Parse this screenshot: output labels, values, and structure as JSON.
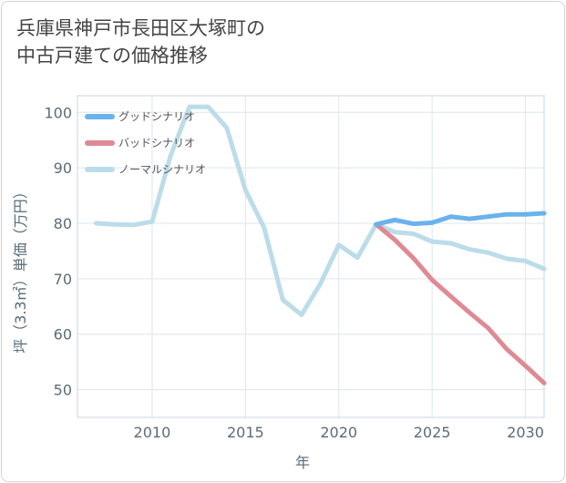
{
  "title_line1": "兵庫県神戸市長田区大塚町の",
  "title_line2": "中古戸建ての価格推移",
  "chart_data": {
    "type": "line",
    "xlabel": "年",
    "ylabel": "坪（3.3㎡）単価（万円）",
    "xlim": [
      2006,
      2031
    ],
    "ylim": [
      45,
      103
    ],
    "xticks": [
      2010,
      2015,
      2020,
      2025,
      2030
    ],
    "yticks": [
      50,
      60,
      70,
      80,
      90,
      100
    ],
    "grid": true,
    "legend_position": "top-left",
    "series": [
      {
        "name": "グッドシナリオ",
        "color": "#6ab2ec",
        "x": [
          2022,
          2023,
          2024,
          2025,
          2026,
          2027,
          2028,
          2029,
          2030,
          2031
        ],
        "y": [
          79.8,
          80.6,
          79.9,
          80.1,
          81.2,
          80.8,
          81.2,
          81.6,
          81.6,
          81.8
        ]
      },
      {
        "name": "バッドシナリオ",
        "color": "#de8a94",
        "x": [
          2022,
          2023,
          2024,
          2025,
          2026,
          2027,
          2028,
          2029,
          2030,
          2031
        ],
        "y": [
          79.8,
          77.0,
          73.7,
          69.8,
          66.8,
          63.9,
          61.1,
          57.3,
          54.3,
          51.2
        ]
      },
      {
        "name": "ノーマルシナリオ",
        "color": "#bcdce9",
        "x": [
          2007,
          2008,
          2009,
          2010,
          2011,
          2012,
          2013,
          2014,
          2015,
          2016,
          2017,
          2018,
          2019,
          2020,
          2021,
          2022,
          2023,
          2024,
          2025,
          2026,
          2027,
          2028,
          2029,
          2030,
          2031
        ],
        "y": [
          80.0,
          79.8,
          79.7,
          80.3,
          92.3,
          101.0,
          101.0,
          97.2,
          86.0,
          79.2,
          66.2,
          63.5,
          69.0,
          76.1,
          73.8,
          79.8,
          78.4,
          78.1,
          76.7,
          76.4,
          75.3,
          74.7,
          73.6,
          73.2,
          71.8
        ]
      }
    ]
  }
}
